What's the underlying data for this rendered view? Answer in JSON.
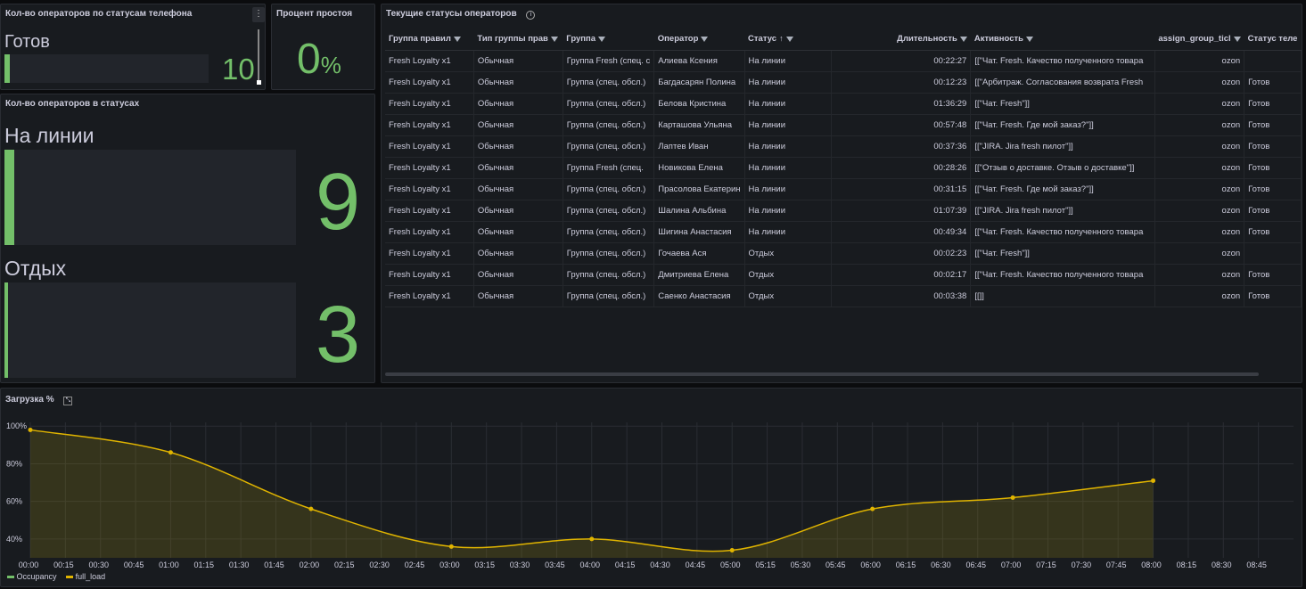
{
  "panel_phone": {
    "title": "Кол-во операторов по статусам телефона",
    "label": "Готов",
    "value": "10",
    "level": 0.025
  },
  "panel_idle": {
    "title": "Процент простоя",
    "value": "0",
    "unit": "%"
  },
  "panel_statuses": {
    "title": "Кол-во операторов в статусах",
    "items": [
      {
        "label": "На линии",
        "value": "9",
        "level": 0.035
      },
      {
        "label": "Отдых",
        "value": "3",
        "level": 0.012
      }
    ]
  },
  "table": {
    "title": "Текущие статусы операторов",
    "columns": [
      "Группа правил",
      "Тип группы прав",
      "Группа",
      "Оператор",
      "Статус",
      "Длительность",
      "Активность",
      "assign_group_ticl",
      "Статус теле"
    ],
    "rows": [
      [
        "Fresh Loyalty x1",
        "Обычная",
        "Группа Fresh (спец. с",
        "Алиева Ксения",
        "На линии",
        "00:22:27",
        "[[\"Чат. Fresh. Качество полученного товара",
        "ozon",
        ""
      ],
      [
        "Fresh Loyalty x1",
        "Обычная",
        "Группа (спец. обсл.)",
        "Багдасарян Полина",
        "На линии",
        "00:12:23",
        "[[\"Арбитраж. Согласования возврата Fresh",
        "ozon",
        "Готов"
      ],
      [
        "Fresh Loyalty x1",
        "Обычная",
        "Группа (спец. обсл.)",
        "Белова Кристина",
        "На линии",
        "01:36:29",
        "[[\"Чат. Fresh\"]]",
        "ozon",
        "Готов"
      ],
      [
        "Fresh Loyalty x1",
        "Обычная",
        "Группа (спец. обсл.)",
        "Карташова Ульяна",
        "На линии",
        "00:57:48",
        "[[\"Чат. Fresh. Где мой заказ?\"]]",
        "ozon",
        "Готов"
      ],
      [
        "Fresh Loyalty x1",
        "Обычная",
        "Группа (спец. обсл.)",
        "Лаптев Иван",
        "На линии",
        "00:37:36",
        "[[\"JIRA. Jira fresh пилот\"]]",
        "ozon",
        "Готов"
      ],
      [
        "Fresh Loyalty x1",
        "Обычная",
        "Группа Fresh (спец.",
        "Новикова Елена",
        "На линии",
        "00:28:26",
        "[[\"Отзыв о доставке. Отзыв о доставке\"]]",
        "ozon",
        "Готов"
      ],
      [
        "Fresh Loyalty x1",
        "Обычная",
        "Группа (спец. обсл.)",
        "Прасолова Екатерин",
        "На линии",
        "00:31:15",
        "[[\"Чат. Fresh. Где мой заказ?\"]]",
        "ozon",
        "Готов"
      ],
      [
        "Fresh Loyalty x1",
        "Обычная",
        "Группа (спец. обсл.)",
        "Шалина Альбина",
        "На линии",
        "01:07:39",
        "[[\"JIRA. Jira fresh пилот\"]]",
        "ozon",
        "Готов"
      ],
      [
        "Fresh Loyalty x1",
        "Обычная",
        "Группа (спец. обсл.)",
        "Шигина Анастасия",
        "На линии",
        "00:49:34",
        "[[\"Чат. Fresh. Качество полученного товара",
        "ozon",
        "Готов"
      ],
      [
        "Fresh Loyalty x1",
        "Обычная",
        "Группа (спец. обсл.)",
        "Гочаева Ася",
        "Отдых",
        "00:02:23",
        "[[\"Чат. Fresh\"]]",
        "ozon",
        ""
      ],
      [
        "Fresh Loyalty x1",
        "Обычная",
        "Группа (спец. обсл.)",
        "Дмитриева Елена",
        "Отдых",
        "00:02:17",
        "[[\"Чат. Fresh. Качество полученного товара",
        "ozon",
        "Готов"
      ],
      [
        "Fresh Loyalty x1",
        "Обычная",
        "Группа (спец. обсл.)",
        "Саенко Анастасия",
        "Отдых",
        "00:03:38",
        "[[]]",
        "ozon",
        "Готов"
      ]
    ]
  },
  "chart_data": {
    "type": "line",
    "title": "Загрузка %",
    "y_ticks": [
      "100%",
      "80%",
      "60%",
      "40%"
    ],
    "ylim": [
      30,
      102
    ],
    "x_ticks": [
      "00:00",
      "00:15",
      "00:30",
      "00:45",
      "01:00",
      "01:15",
      "01:30",
      "01:45",
      "02:00",
      "02:15",
      "02:30",
      "02:45",
      "03:00",
      "03:15",
      "03:30",
      "03:45",
      "04:00",
      "04:15",
      "04:30",
      "04:45",
      "05:00",
      "05:15",
      "05:30",
      "05:45",
      "06:00",
      "06:15",
      "06:30",
      "06:45",
      "07:00",
      "07:15",
      "07:30",
      "07:45",
      "08:00",
      "08:15",
      "08:30",
      "08:45"
    ],
    "x_minutes": [
      0,
      60,
      120,
      180,
      240,
      300,
      360,
      420,
      480
    ],
    "legend": [
      "Occupancy",
      "full_load"
    ],
    "legend_colors": [
      "#73bf69",
      "#e0b400"
    ],
    "series": [
      {
        "name": "full_load",
        "values": [
          98,
          86,
          56,
          36,
          40,
          34,
          56,
          62,
          71
        ]
      }
    ],
    "grid": true,
    "legend_position": "bottom-left"
  },
  "colors": {
    "accent": "#73bf69",
    "series": "#e0b400",
    "bg": "#181b1f"
  }
}
